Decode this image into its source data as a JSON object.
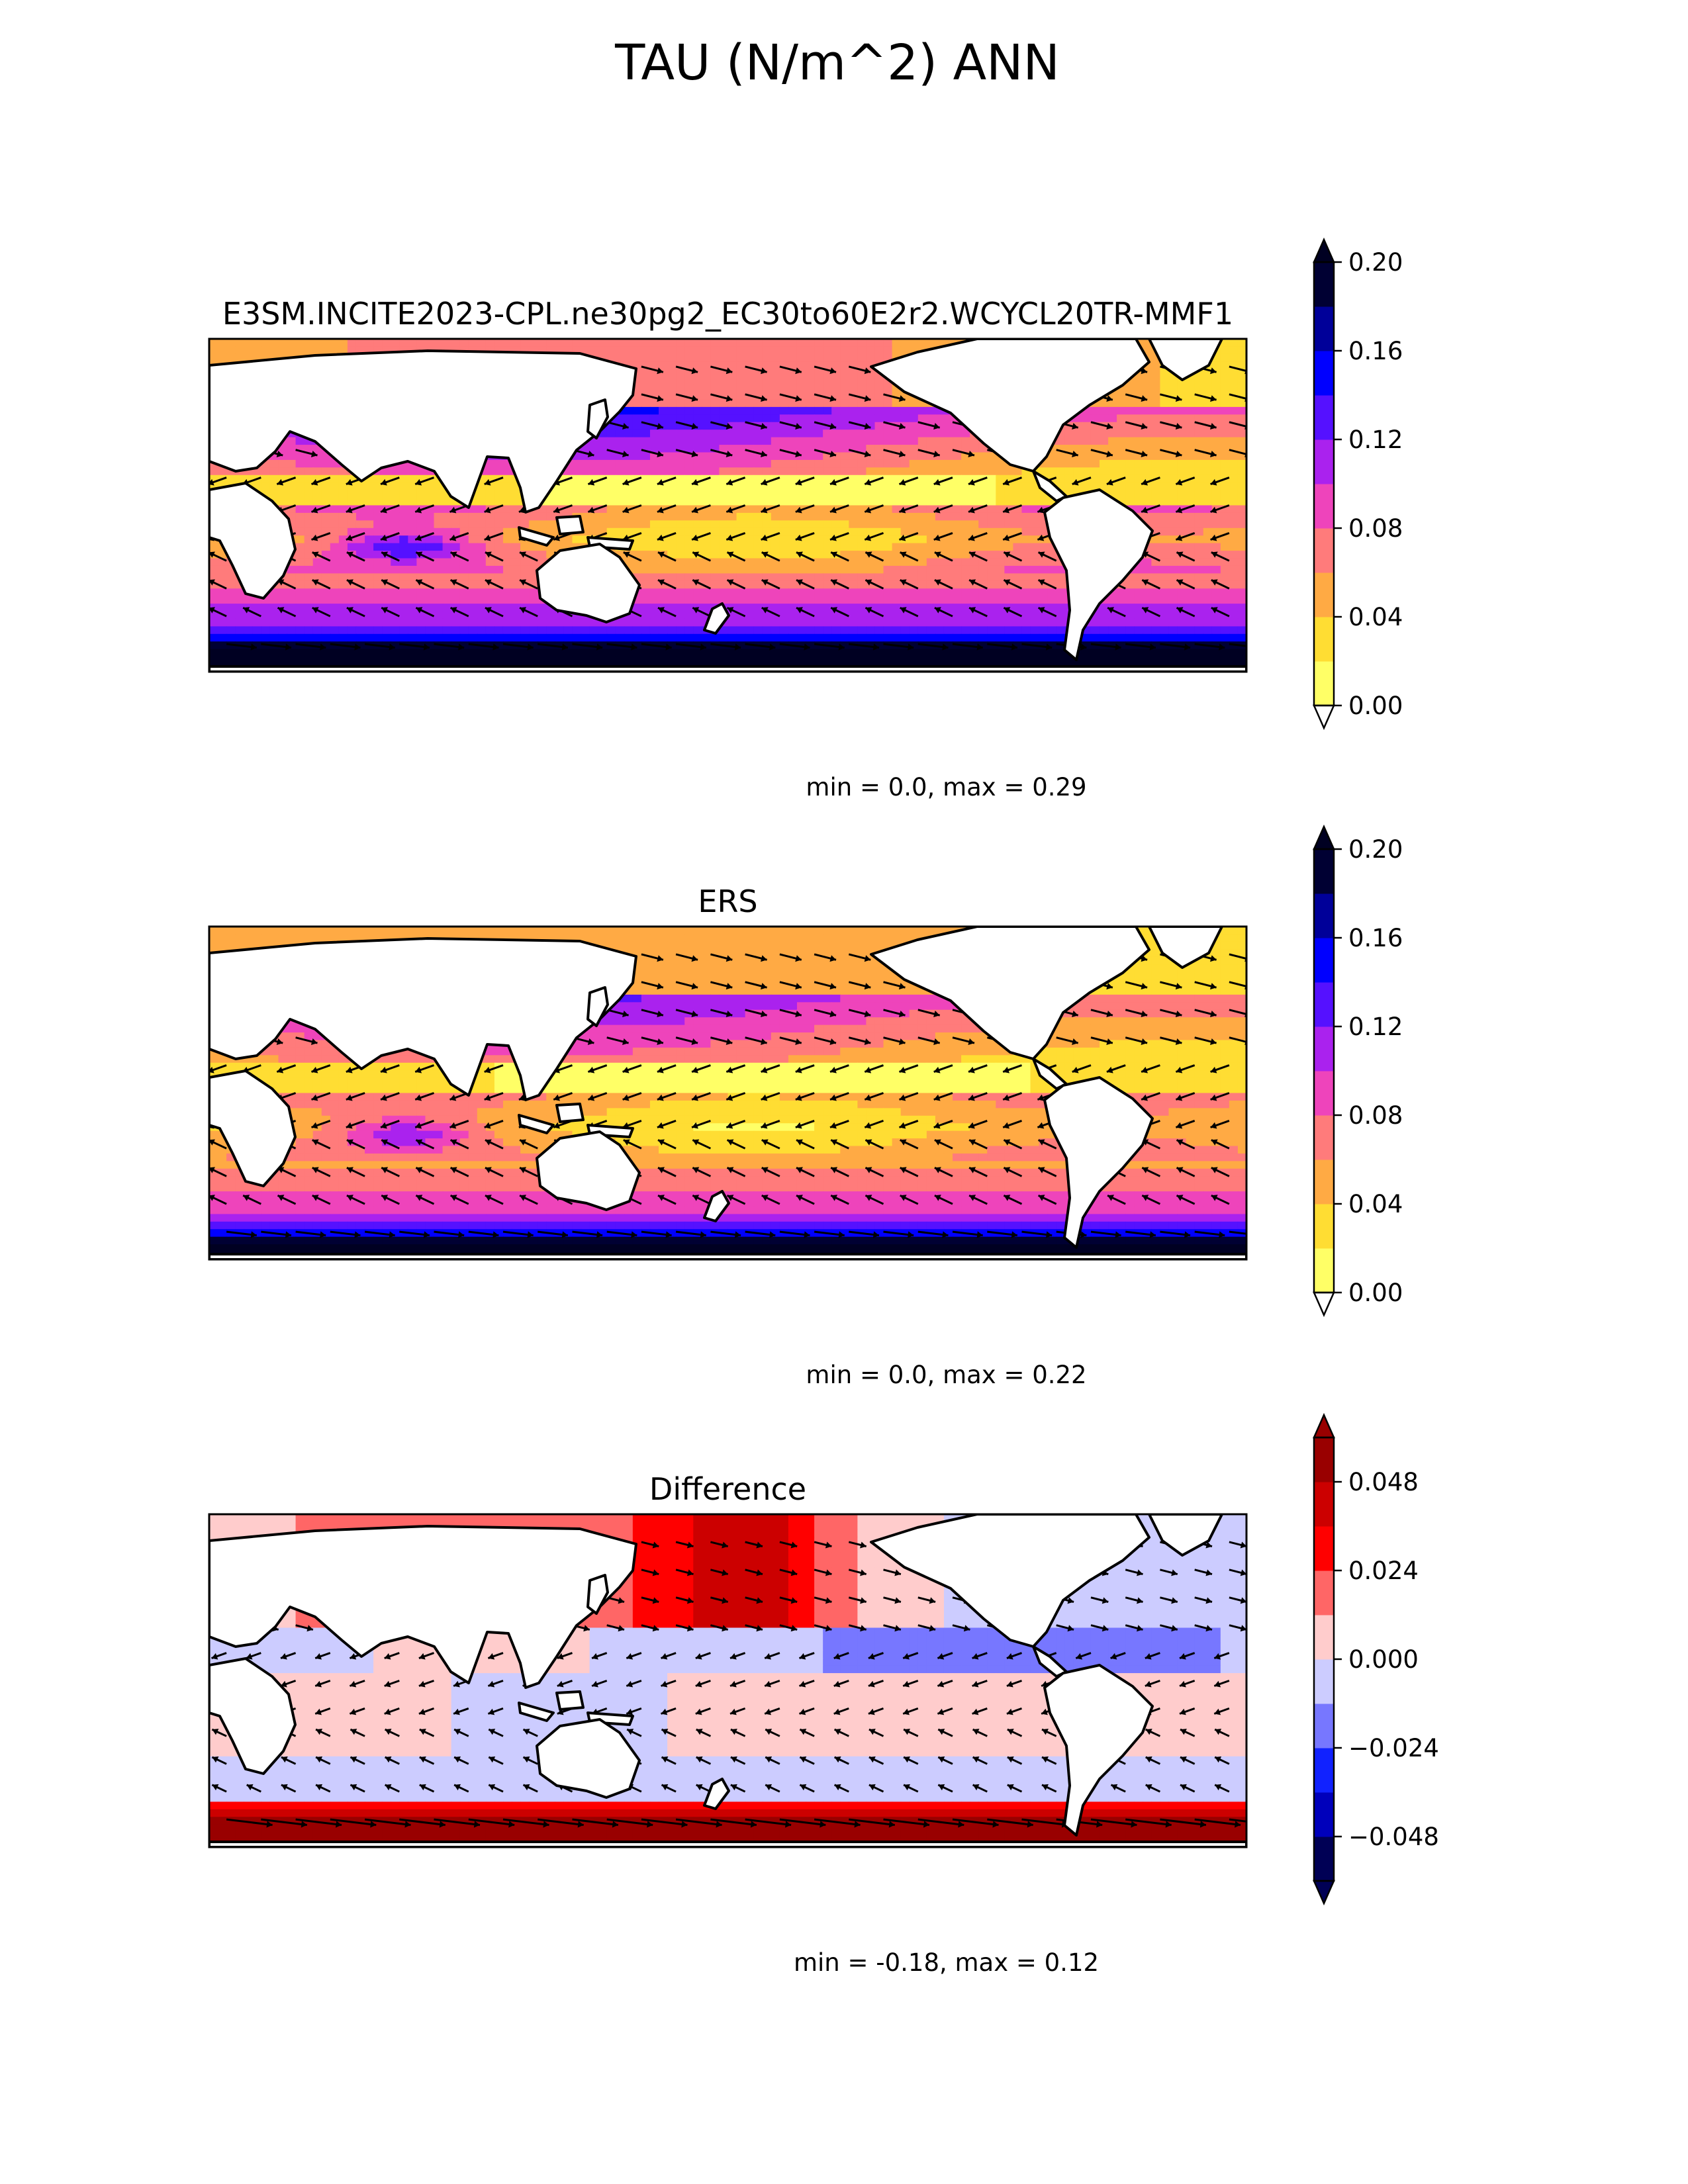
{
  "figure": {
    "title": "TAU (N/m^2) ANN"
  },
  "palettes": {
    "seq": [
      "#ffff66",
      "#ffdd33",
      "#ffaa44",
      "#ff7b7b",
      "#ee44bb",
      "#aa22ee",
      "#5511ff",
      "#0000ff",
      "#000099",
      "#000033"
    ],
    "seq_under": "#ffffff",
    "seq_over": "#000022",
    "div": [
      "#000055",
      "#0000bb",
      "#1122ff",
      "#7777ff",
      "#ccccff",
      "#ffcccc",
      "#ff6666",
      "#ff0000",
      "#cc0000",
      "#990000"
    ],
    "land": "#ffffff",
    "coast": "#000000"
  },
  "chart_data": [
    {
      "type": "heatmap",
      "title": "E3SM.INCITE2023-CPL.ne30pg2_EC30to60E2r2.WCYCL20TR-MMF1",
      "stats": "min = 0.0, max = 0.29",
      "palette": "seq",
      "levels": [
        0,
        0.02,
        0.04,
        0.06,
        0.08,
        0.1,
        0.12,
        0.14,
        0.16,
        0.18,
        0.2
      ],
      "colorbar_ticks": [
        0,
        0.04,
        0.08,
        0.12,
        0.16,
        0.2
      ],
      "colorbar_tick_labels": [
        "0.00",
        "0.04",
        "0.08",
        "0.12",
        "0.16",
        "0.20"
      ],
      "colorbar_extend": "both",
      "xlim": [
        0,
        360
      ],
      "ylim": [
        -60,
        90
      ]
    },
    {
      "type": "heatmap",
      "title": "ERS",
      "stats": "min = 0.0, max = 0.22",
      "palette": "seq",
      "levels": [
        0,
        0.02,
        0.04,
        0.06,
        0.08,
        0.1,
        0.12,
        0.14,
        0.16,
        0.18,
        0.2
      ],
      "colorbar_ticks": [
        0,
        0.04,
        0.08,
        0.12,
        0.16,
        0.2
      ],
      "colorbar_tick_labels": [
        "0.00",
        "0.04",
        "0.08",
        "0.12",
        "0.16",
        "0.20"
      ],
      "colorbar_extend": "both",
      "xlim": [
        0,
        360
      ],
      "ylim": [
        -60,
        90
      ]
    },
    {
      "type": "heatmap",
      "title": "Difference",
      "stats": "min = -0.18, max = 0.12",
      "palette": "div",
      "levels": [
        -0.06,
        -0.048,
        -0.036,
        -0.024,
        -0.012,
        0,
        0.012,
        0.024,
        0.036,
        0.048,
        0.06
      ],
      "colorbar_ticks": [
        -0.048,
        -0.024,
        0,
        0.024,
        0.048
      ],
      "colorbar_tick_labels": [
        "−0.048",
        "−0.024",
        "0.000",
        "0.024",
        "0.048"
      ],
      "colorbar_extend": "both",
      "xlim": [
        0,
        360
      ],
      "ylim": [
        -60,
        90
      ]
    }
  ]
}
